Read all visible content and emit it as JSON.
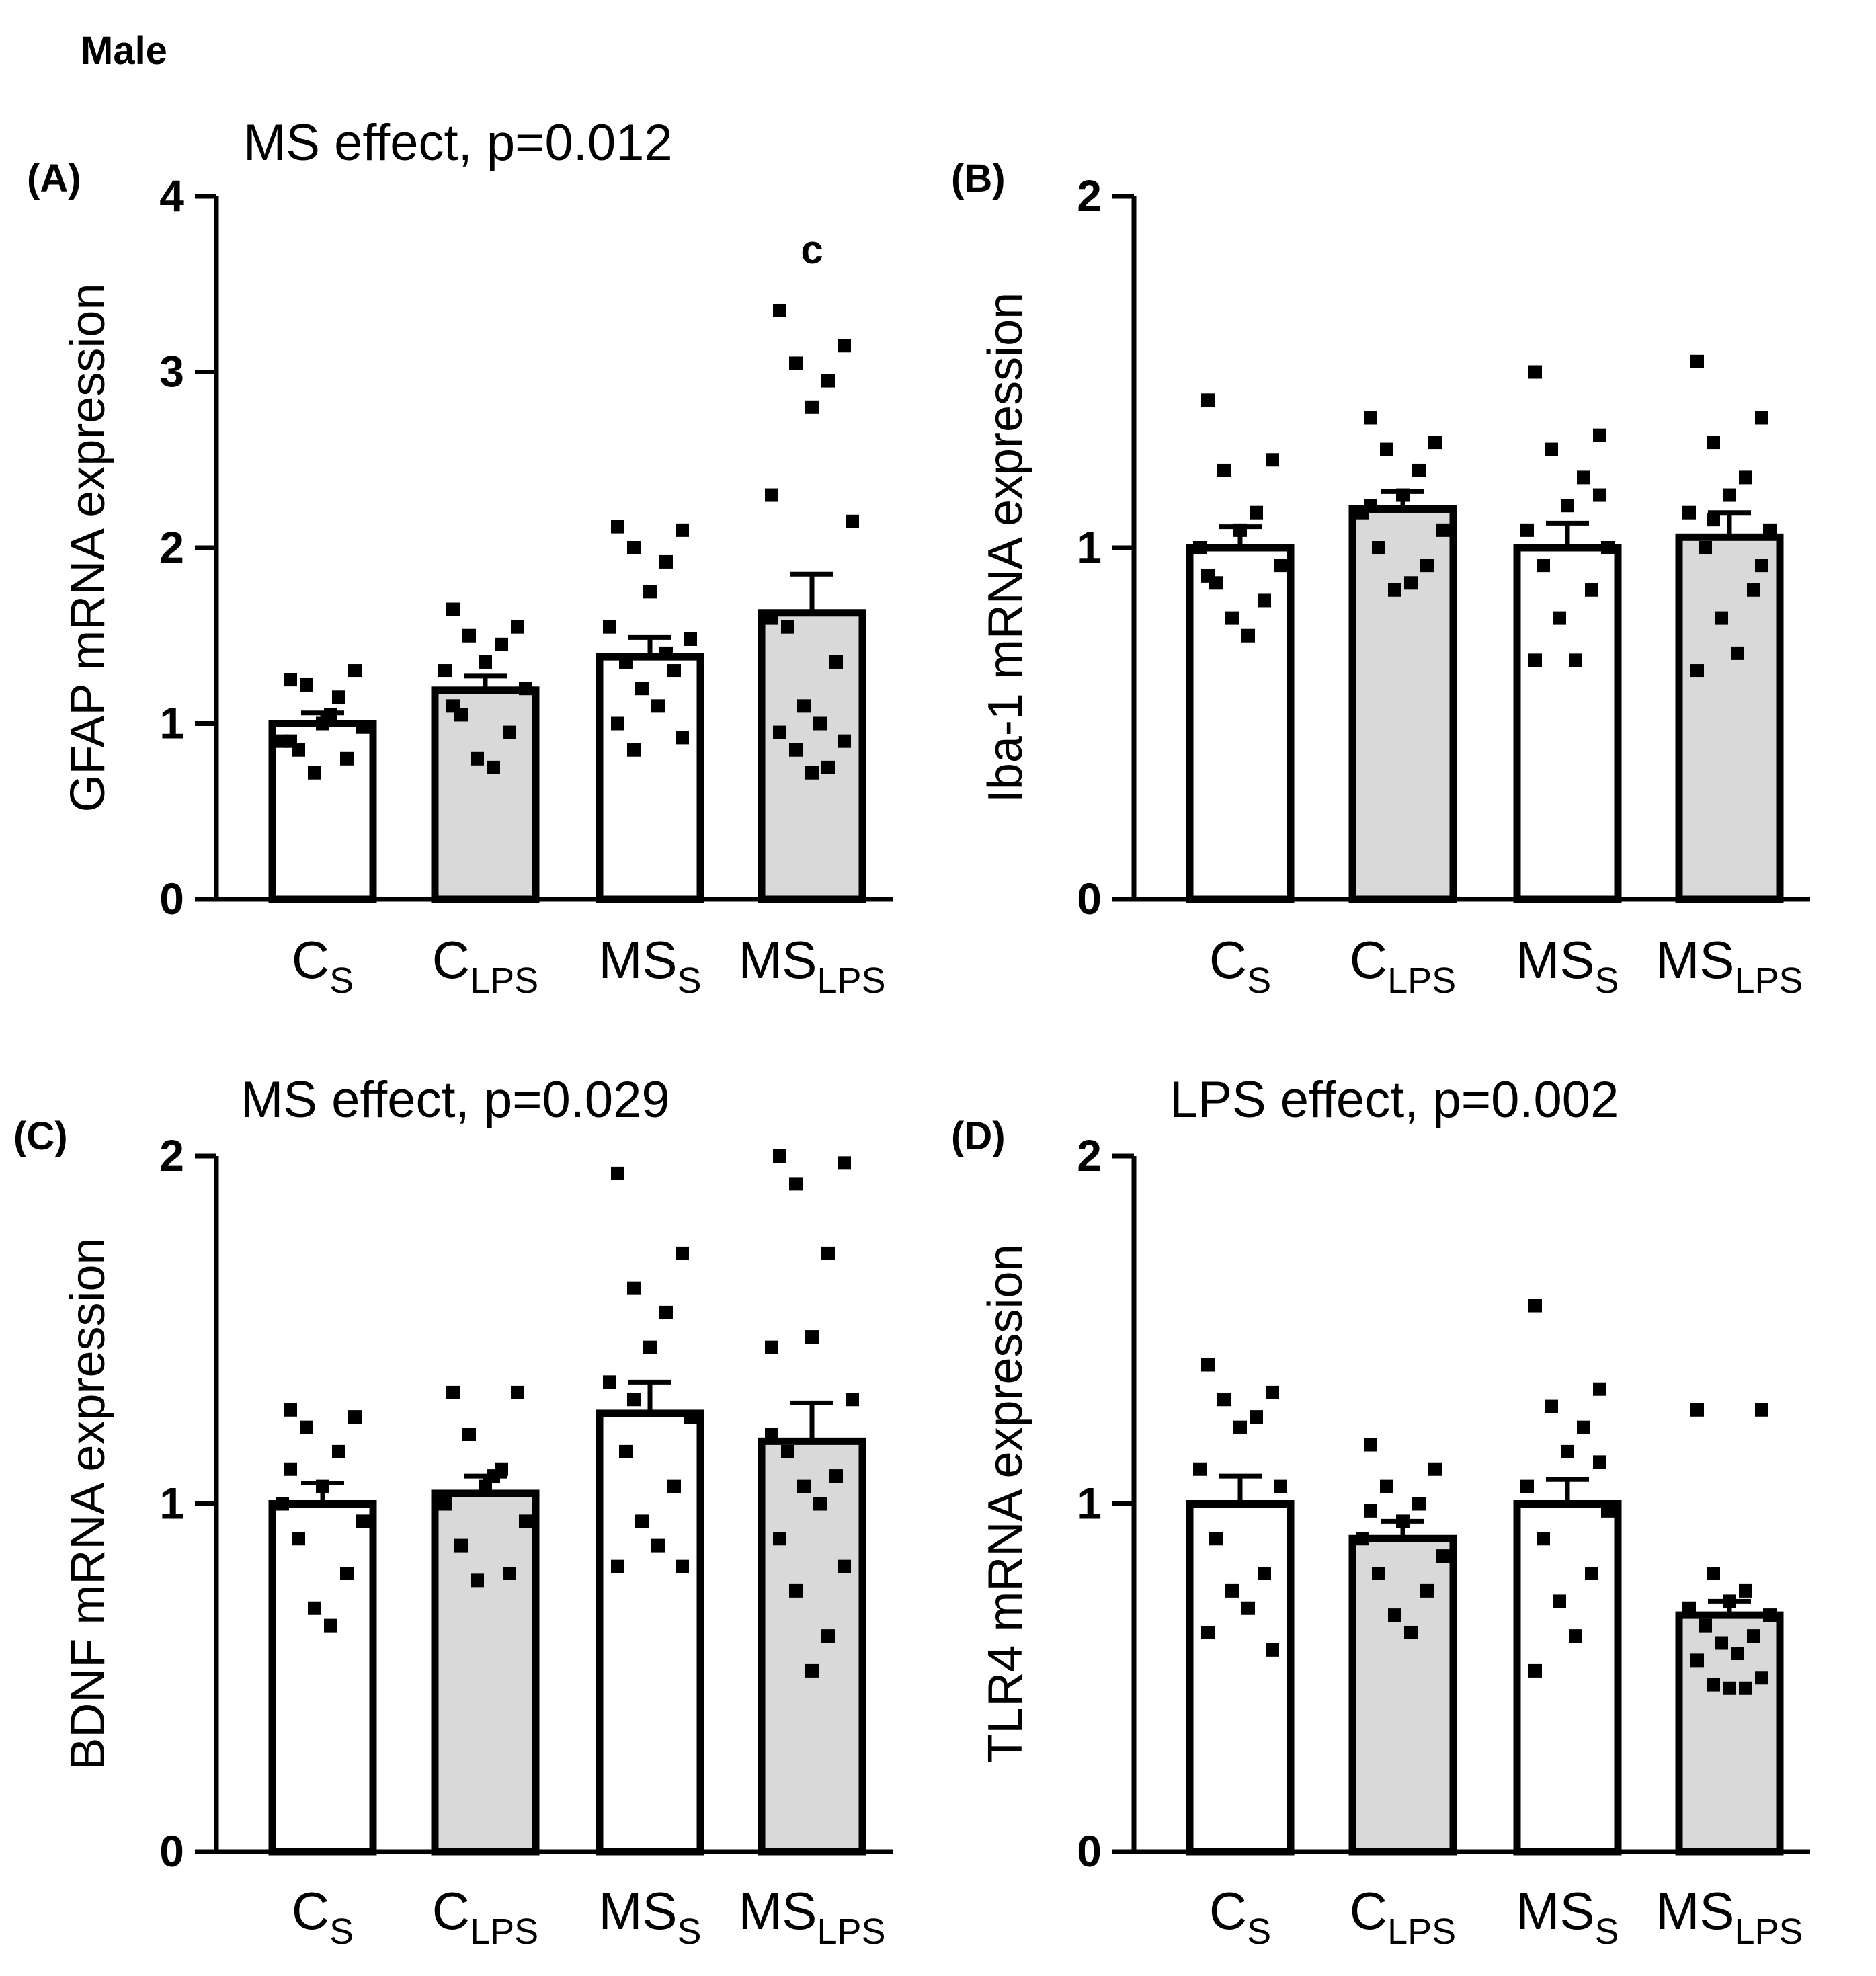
{
  "figure_title": "Male",
  "chart_data": [
    {
      "type": "bar",
      "panel": "(A)",
      "title": "MS effect, p=0.012",
      "ylabel": "GFAP mRNA expression",
      "ylim": [
        0,
        4
      ],
      "yticks": [
        "0",
        "1",
        "2",
        "3",
        "4"
      ],
      "categories": [
        {
          "main": "C",
          "sub": "S",
          "fill": "#ffffff"
        },
        {
          "main": "C",
          "sub": "LPS",
          "fill": "#d9d9d9"
        },
        {
          "main": "MS",
          "sub": "S",
          "fill": "#ffffff"
        },
        {
          "main": "MS",
          "sub": "LPS",
          "fill": "#d9d9d9"
        }
      ],
      "means": [
        1.0,
        1.19,
        1.38,
        1.63
      ],
      "sem": [
        0.06,
        0.08,
        0.11,
        0.22
      ],
      "points": [
        [
          1.25,
          1.3,
          1.22,
          1.15,
          1.0,
          0.9,
          0.98,
          0.85,
          0.8,
          0.72,
          1.05,
          0.9
        ],
        [
          1.65,
          1.55,
          1.5,
          1.45,
          1.35,
          1.3,
          1.2,
          1.05,
          0.95,
          0.8,
          0.75,
          1.1
        ],
        [
          2.12,
          2.1,
          2.0,
          1.92,
          1.75,
          1.55,
          1.48,
          1.35,
          1.3,
          1.2,
          1.1,
          1.0,
          0.92,
          0.85,
          1.4
        ],
        [
          3.35,
          3.15,
          3.05,
          2.95,
          2.8,
          2.3,
          2.15,
          1.55,
          1.35,
          1.1,
          1.0,
          0.95,
          0.9,
          0.85,
          0.75,
          0.72,
          1.6
        ]
      ],
      "significance": [
        "",
        "",
        "",
        "c"
      ]
    },
    {
      "type": "bar",
      "panel": "(B)",
      "title": "",
      "ylabel": "Iba-1 mRNA expression",
      "ylim": [
        0,
        2
      ],
      "yticks": [
        "0",
        "1",
        "2"
      ],
      "categories": [
        {
          "main": "C",
          "sub": "S",
          "fill": "#ffffff"
        },
        {
          "main": "C",
          "sub": "LPS",
          "fill": "#d9d9d9"
        },
        {
          "main": "MS",
          "sub": "S",
          "fill": "#ffffff"
        },
        {
          "main": "MS",
          "sub": "LPS",
          "fill": "#d9d9d9"
        }
      ],
      "means": [
        1.0,
        1.11,
        1.0,
        1.03
      ],
      "sem": [
        0.06,
        0.05,
        0.07,
        0.07
      ],
      "points": [
        [
          1.42,
          1.25,
          1.22,
          1.1,
          1.05,
          1.0,
          0.95,
          0.9,
          0.85,
          0.8,
          0.75,
          0.92
        ],
        [
          1.37,
          1.3,
          1.28,
          1.22,
          1.15,
          1.1,
          1.05,
          1.0,
          0.95,
          0.88,
          0.9,
          1.12
        ],
        [
          1.5,
          1.32,
          1.28,
          1.2,
          1.12,
          1.05,
          1.0,
          0.95,
          0.88,
          0.8,
          0.68,
          0.68,
          1.15
        ],
        [
          1.53,
          1.37,
          1.3,
          1.2,
          1.15,
          1.1,
          1.05,
          1.0,
          0.88,
          0.8,
          0.7,
          0.65,
          0.95,
          1.08
        ]
      ],
      "significance": [
        "",
        "",
        "",
        ""
      ]
    },
    {
      "type": "bar",
      "panel": "(C)",
      "title": "MS effect, p=0.029",
      "ylabel": "BDNF mRNA expression",
      "ylim": [
        0,
        2
      ],
      "yticks": [
        "0",
        "1",
        "2"
      ],
      "categories": [
        {
          "main": "C",
          "sub": "S",
          "fill": "#ffffff"
        },
        {
          "main": "C",
          "sub": "LPS",
          "fill": "#d9d9d9"
        },
        {
          "main": "MS",
          "sub": "S",
          "fill": "#ffffff"
        },
        {
          "main": "MS",
          "sub": "LPS",
          "fill": "#d9d9d9"
        }
      ],
      "means": [
        1.0,
        1.03,
        1.26,
        1.18
      ],
      "sem": [
        0.06,
        0.05,
        0.09,
        0.11
      ],
      "points": [
        [
          1.27,
          1.25,
          1.22,
          1.15,
          1.05,
          1.0,
          0.95,
          0.9,
          0.8,
          0.7,
          0.65,
          1.1
        ],
        [
          1.32,
          1.32,
          1.2,
          1.1,
          1.05,
          1.0,
          0.95,
          0.88,
          0.8,
          0.78,
          1.08
        ],
        [
          1.95,
          1.72,
          1.62,
          1.55,
          1.45,
          1.35,
          1.25,
          1.15,
          1.05,
          0.95,
          0.88,
          0.82,
          0.82,
          1.3
        ],
        [
          2.0,
          1.98,
          1.92,
          1.72,
          1.48,
          1.45,
          1.3,
          1.15,
          1.08,
          1.05,
          1.0,
          0.9,
          0.82,
          0.75,
          0.62,
          0.52,
          1.2
        ]
      ],
      "significance": [
        "",
        "",
        "",
        ""
      ]
    },
    {
      "type": "bar",
      "panel": "(D)",
      "title": "LPS effect, p=0.002",
      "ylabel": "TLR4 mRNA expression",
      "ylim": [
        0,
        2
      ],
      "yticks": [
        "0",
        "1",
        "2"
      ],
      "categories": [
        {
          "main": "C",
          "sub": "S",
          "fill": "#ffffff"
        },
        {
          "main": "C",
          "sub": "LPS",
          "fill": "#d9d9d9"
        },
        {
          "main": "MS",
          "sub": "S",
          "fill": "#ffffff"
        },
        {
          "main": "MS",
          "sub": "LPS",
          "fill": "#d9d9d9"
        }
      ],
      "means": [
        1.0,
        0.9,
        1.0,
        0.68
      ],
      "sem": [
        0.08,
        0.05,
        0.07,
        0.04
      ],
      "points": [
        [
          1.4,
          1.32,
          1.3,
          1.25,
          1.22,
          1.1,
          1.05,
          0.9,
          0.8,
          0.75,
          0.7,
          0.63,
          0.58
        ],
        [
          1.17,
          1.1,
          1.05,
          1.0,
          0.95,
          0.9,
          0.85,
          0.8,
          0.75,
          0.68,
          0.63,
          0.98
        ],
        [
          1.57,
          1.33,
          1.28,
          1.22,
          1.15,
          1.05,
          0.98,
          0.9,
          0.8,
          0.72,
          0.62,
          0.52,
          1.12
        ],
        [
          1.27,
          1.27,
          0.8,
          0.75,
          0.72,
          0.7,
          0.68,
          0.65,
          0.62,
          0.6,
          0.57,
          0.55,
          0.5,
          0.48,
          0.47,
          0.47
        ]
      ],
      "significance": [
        "",
        "",
        "",
        ""
      ]
    }
  ]
}
